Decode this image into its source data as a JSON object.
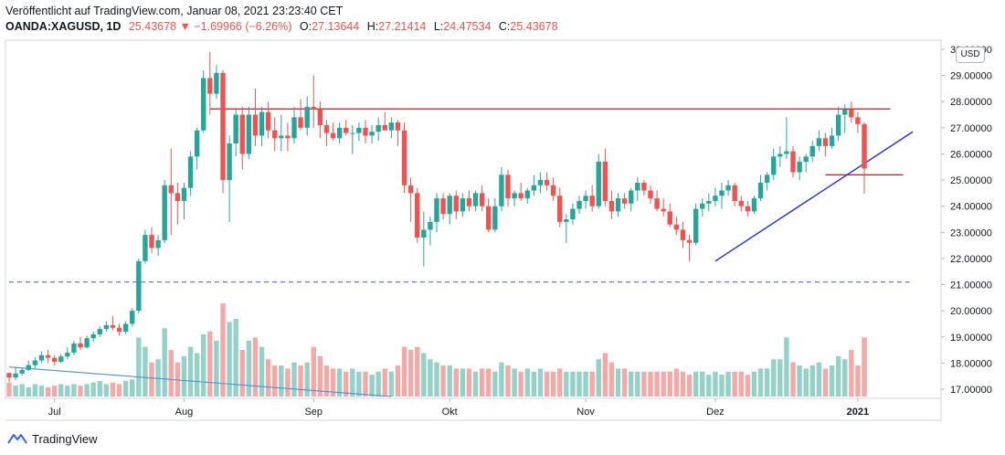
{
  "header": {
    "published": "Veröffentlicht auf TradingView.com, Januar 08, 2021 23:23:40 CET",
    "symbol": "OANDA:XAGUSD, 1D",
    "price": "25.43678",
    "change": "−1.69966 (−6.26%)",
    "o_label": "O:",
    "o_value": "27.13644",
    "h_label": "H:",
    "h_value": "27.21414",
    "l_label": "L:",
    "l_value": "24.47534",
    "c_label": "C:",
    "c_value": "25.43678"
  },
  "currency_badge": "USD",
  "footer": {
    "brand": "TradingView"
  },
  "colors": {
    "up": "#26a69a",
    "down": "#ef5350",
    "vol_up": "#93d1c9",
    "vol_down": "#f5a9a7",
    "resistance": "#b71c1c",
    "trend": "#2130d9",
    "dashed": "#5b6bd9",
    "lower_line": "#4a90d9"
  },
  "chart_data": {
    "type": "candlestick",
    "timeframe": "1D",
    "y_axis_labels": [
      "17.00000",
      "18.00000",
      "19.00000",
      "20.00000",
      "21.00000",
      "22.00000",
      "23.00000",
      "24.00000",
      "25.00000",
      "26.00000",
      "27.00000",
      "28.00000",
      "29.00000",
      "30.00000"
    ],
    "x_axis_labels": [
      {
        "label": "Jul",
        "index": 7
      },
      {
        "label": "Aug",
        "index": 27
      },
      {
        "label": "Sep",
        "index": 47
      },
      {
        "label": "Okt",
        "index": 68
      },
      {
        "label": "Nov",
        "index": 89
      },
      {
        "label": "Dez",
        "index": 109
      },
      {
        "label": "2021",
        "index": 131
      }
    ],
    "ylim": [
      16.65,
      30.35
    ],
    "candles": [
      [
        17.62,
        17.62,
        17.27,
        17.45
      ],
      [
        17.45,
        17.86,
        17.36,
        17.6
      ],
      [
        17.6,
        17.83,
        17.52,
        17.74
      ],
      [
        17.74,
        18.1,
        17.7,
        17.92
      ],
      [
        17.92,
        18.22,
        17.8,
        18.1
      ],
      [
        18.1,
        18.45,
        18.0,
        18.3
      ],
      [
        18.3,
        18.5,
        18.0,
        18.2
      ],
      [
        18.2,
        18.3,
        17.9,
        18.05
      ],
      [
        18.05,
        18.35,
        18.0,
        18.25
      ],
      [
        18.25,
        18.6,
        18.15,
        18.4
      ],
      [
        18.4,
        18.85,
        18.3,
        18.75
      ],
      [
        18.75,
        19.0,
        18.5,
        18.6
      ],
      [
        18.6,
        19.05,
        18.55,
        18.95
      ],
      [
        18.95,
        19.2,
        18.8,
        19.1
      ],
      [
        19.1,
        19.4,
        19.0,
        19.3
      ],
      [
        19.3,
        19.6,
        19.2,
        19.45
      ],
      [
        19.45,
        19.8,
        19.25,
        19.35
      ],
      [
        19.35,
        19.5,
        19.05,
        19.2
      ],
      [
        19.2,
        19.6,
        19.1,
        19.5
      ],
      [
        19.5,
        20.1,
        19.4,
        20.0
      ],
      [
        20.0,
        22.0,
        19.9,
        21.9
      ],
      [
        21.9,
        23.1,
        21.8,
        22.9
      ],
      [
        22.9,
        23.2,
        22.2,
        22.4
      ],
      [
        22.4,
        22.9,
        22.1,
        22.7
      ],
      [
        22.7,
        25.0,
        22.6,
        24.8
      ],
      [
        24.8,
        26.2,
        22.9,
        24.5
      ],
      [
        24.5,
        24.9,
        23.3,
        24.2
      ],
      [
        24.2,
        24.9,
        23.5,
        24.7
      ],
      [
        24.7,
        26.1,
        24.4,
        25.9
      ],
      [
        25.9,
        27.0,
        25.4,
        26.9
      ],
      [
        26.9,
        29.2,
        26.8,
        28.9
      ],
      [
        28.9,
        29.9,
        27.5,
        28.3
      ],
      [
        28.3,
        29.4,
        28.1,
        29.1
      ],
      [
        29.1,
        29.2,
        24.5,
        25.0
      ],
      [
        25.0,
        26.7,
        23.4,
        26.4
      ],
      [
        26.4,
        27.7,
        25.9,
        27.5
      ],
      [
        27.5,
        27.8,
        25.4,
        26.0
      ],
      [
        26.0,
        27.8,
        25.8,
        27.5
      ],
      [
        27.5,
        28.5,
        26.3,
        26.7
      ],
      [
        26.7,
        27.8,
        26.3,
        27.6
      ],
      [
        27.6,
        28.0,
        26.6,
        26.9
      ],
      [
        26.9,
        27.4,
        26.1,
        26.6
      ],
      [
        26.6,
        27.5,
        26.1,
        26.7
      ],
      [
        26.7,
        27.2,
        26.1,
        26.6
      ],
      [
        26.6,
        27.8,
        26.4,
        27.4
      ],
      [
        27.4,
        28.1,
        26.9,
        27.0
      ],
      [
        27.0,
        28.2,
        26.7,
        27.8
      ],
      [
        27.8,
        29.0,
        27.0,
        27.7
      ],
      [
        27.7,
        28.0,
        26.6,
        27.1
      ],
      [
        27.1,
        27.3,
        26.3,
        26.8
      ],
      [
        26.8,
        27.2,
        26.5,
        26.6
      ],
      [
        26.6,
        27.2,
        26.4,
        27.0
      ],
      [
        27.0,
        27.3,
        26.7,
        26.8
      ],
      [
        26.8,
        27.1,
        26.0,
        26.8
      ],
      [
        26.8,
        27.2,
        26.5,
        27.0
      ],
      [
        27.0,
        27.3,
        26.4,
        26.7
      ],
      [
        26.7,
        27.1,
        26.4,
        26.85
      ],
      [
        26.85,
        27.4,
        26.5,
        27.1
      ],
      [
        27.1,
        27.6,
        26.9,
        26.9
      ],
      [
        26.9,
        27.4,
        26.6,
        27.2
      ],
      [
        27.2,
        27.3,
        26.3,
        26.9
      ],
      [
        26.9,
        27.2,
        24.5,
        24.8
      ],
      [
        24.8,
        25.1,
        23.4,
        24.5
      ],
      [
        24.5,
        24.7,
        22.6,
        22.8
      ],
      [
        22.8,
        23.8,
        21.7,
        23.1
      ],
      [
        23.1,
        23.6,
        22.5,
        23.4
      ],
      [
        23.4,
        24.5,
        23.0,
        24.3
      ],
      [
        24.3,
        24.5,
        23.5,
        23.7
      ],
      [
        23.7,
        24.5,
        23.3,
        24.4
      ],
      [
        24.4,
        24.6,
        23.5,
        23.8
      ],
      [
        23.8,
        24.5,
        23.6,
        24.3
      ],
      [
        24.3,
        24.6,
        23.8,
        24.0
      ],
      [
        24.0,
        24.6,
        23.8,
        24.5
      ],
      [
        24.5,
        24.8,
        23.8,
        24.0
      ],
      [
        24.0,
        24.3,
        23.0,
        23.1
      ],
      [
        23.1,
        24.3,
        23.0,
        24.0
      ],
      [
        24.0,
        25.5,
        23.8,
        25.2
      ],
      [
        25.2,
        25.4,
        24.0,
        24.3
      ],
      [
        24.3,
        24.6,
        24.0,
        24.5
      ],
      [
        24.5,
        24.9,
        24.2,
        24.3
      ],
      [
        24.3,
        24.7,
        24.1,
        24.6
      ],
      [
        24.6,
        25.2,
        24.4,
        24.8
      ],
      [
        24.8,
        25.3,
        24.5,
        25.0
      ],
      [
        25.0,
        25.3,
        24.6,
        24.8
      ],
      [
        24.8,
        25.1,
        24.2,
        24.4
      ],
      [
        24.4,
        24.7,
        23.2,
        23.4
      ],
      [
        23.4,
        23.7,
        22.6,
        23.5
      ],
      [
        23.5,
        24.1,
        23.3,
        23.9
      ],
      [
        23.9,
        24.4,
        23.7,
        24.2
      ],
      [
        24.2,
        24.6,
        23.9,
        24.4
      ],
      [
        24.4,
        24.8,
        23.8,
        24.0
      ],
      [
        24.0,
        26.0,
        23.9,
        25.7
      ],
      [
        25.7,
        26.2,
        24.0,
        24.2
      ],
      [
        24.2,
        24.6,
        23.5,
        23.8
      ],
      [
        23.8,
        24.5,
        23.6,
        24.3
      ],
      [
        24.3,
        24.5,
        23.9,
        24.1
      ],
      [
        24.1,
        24.7,
        23.8,
        24.6
      ],
      [
        24.6,
        25.1,
        24.2,
        24.9
      ],
      [
        24.9,
        25.0,
        24.4,
        24.6
      ],
      [
        24.6,
        24.8,
        24.1,
        24.3
      ],
      [
        24.3,
        24.6,
        23.8,
        23.9
      ],
      [
        23.9,
        24.3,
        23.6,
        23.8
      ],
      [
        23.8,
        24.1,
        23.2,
        23.3
      ],
      [
        23.3,
        23.6,
        22.9,
        23.1
      ],
      [
        23.1,
        23.4,
        22.4,
        22.7
      ],
      [
        22.7,
        22.9,
        21.9,
        22.6
      ],
      [
        22.6,
        24.1,
        22.5,
        23.9
      ],
      [
        23.9,
        24.3,
        23.6,
        24.1
      ],
      [
        24.1,
        24.5,
        23.8,
        24.2
      ],
      [
        24.2,
        24.7,
        24.0,
        24.4
      ],
      [
        24.4,
        24.9,
        23.9,
        24.6
      ],
      [
        24.6,
        25.0,
        24.4,
        24.8
      ],
      [
        24.8,
        24.9,
        24.0,
        24.2
      ],
      [
        24.2,
        24.4,
        23.8,
        24.0
      ],
      [
        24.0,
        24.2,
        23.6,
        23.8
      ],
      [
        23.8,
        24.4,
        23.7,
        24.3
      ],
      [
        24.3,
        25.2,
        24.2,
        24.9
      ],
      [
        24.9,
        25.3,
        24.6,
        25.2
      ],
      [
        25.2,
        26.2,
        25.0,
        25.9
      ],
      [
        25.9,
        26.3,
        25.5,
        26.0
      ],
      [
        26.0,
        27.4,
        25.8,
        26.1
      ],
      [
        26.1,
        26.3,
        25.1,
        25.3
      ],
      [
        25.3,
        25.9,
        25.0,
        25.7
      ],
      [
        25.7,
        26.0,
        25.3,
        25.9
      ],
      [
        25.9,
        26.5,
        25.7,
        26.3
      ],
      [
        26.3,
        26.9,
        26.1,
        26.6
      ],
      [
        26.6,
        26.8,
        25.9,
        26.3
      ],
      [
        26.3,
        27.0,
        26.2,
        26.7
      ],
      [
        26.7,
        27.8,
        26.5,
        27.5
      ],
      [
        27.5,
        27.9,
        26.8,
        27.7
      ],
      [
        27.7,
        28.0,
        27.2,
        27.4
      ],
      [
        27.4,
        27.6,
        26.8,
        27.14
      ],
      [
        27.14,
        27.21,
        24.48,
        25.44
      ]
    ],
    "volumes": [
      0.45,
      0.35,
      0.4,
      0.3,
      0.4,
      0.35,
      0.3,
      0.35,
      0.4,
      0.35,
      0.4,
      0.35,
      0.4,
      0.45,
      0.5,
      0.4,
      0.45,
      0.4,
      0.5,
      0.55,
      1.9,
      1.6,
      1.1,
      1.2,
      2.2,
      1.5,
      1.1,
      1.3,
      1.6,
      1.4,
      2.0,
      2.1,
      1.8,
      3.0,
      2.4,
      2.5,
      1.5,
      1.8,
      1.9,
      1.6,
      1.2,
      1.0,
      1.0,
      0.9,
      1.1,
      1.0,
      1.1,
      1.6,
      1.3,
      1.0,
      0.9,
      0.9,
      0.8,
      0.9,
      0.8,
      0.8,
      0.7,
      0.8,
      0.9,
      0.8,
      1.0,
      1.6,
      1.5,
      1.6,
      1.4,
      1.2,
      1.1,
      1.0,
      1.0,
      0.9,
      0.9,
      0.9,
      0.8,
      0.9,
      0.9,
      0.8,
      1.1,
      1.0,
      0.9,
      0.8,
      0.9,
      0.8,
      0.9,
      0.8,
      0.8,
      0.9,
      0.8,
      0.8,
      0.8,
      0.8,
      0.8,
      1.2,
      1.4,
      1.1,
      0.9,
      0.9,
      0.8,
      0.8,
      0.8,
      0.8,
      0.8,
      0.8,
      0.8,
      0.9,
      0.8,
      0.7,
      0.8,
      0.8,
      0.7,
      0.8,
      0.7,
      0.8,
      0.8,
      0.8,
      0.7,
      0.8,
      0.9,
      0.9,
      1.2,
      1.2,
      1.9,
      1.1,
      1.0,
      0.9,
      1.0,
      1.1,
      0.9,
      1.0,
      1.3,
      1.2,
      1.5,
      1.0,
      1.9
    ],
    "horizontal_lines": [
      {
        "price": 27.72,
        "start_index": 31,
        "end_index": 136,
        "style": "solid",
        "color_key": "resistance"
      },
      {
        "price": 25.2,
        "start_index": 126,
        "end_index": 138,
        "style": "solid",
        "color_key": "resistance"
      },
      {
        "price": 21.1,
        "start_index": 0,
        "end_index": 139,
        "style": "dashed",
        "color_key": "dashed"
      }
    ],
    "trend_lines": [
      {
        "x1_index": 109,
        "y1": 21.9,
        "x2_index": 139.5,
        "y2": 26.85,
        "color_key": "trend"
      }
    ],
    "volume_trend_line": {
      "x1_index": 0,
      "v1": 0.95,
      "x2_index": 59,
      "v2": 0.0,
      "color_key": "lower_line"
    }
  }
}
